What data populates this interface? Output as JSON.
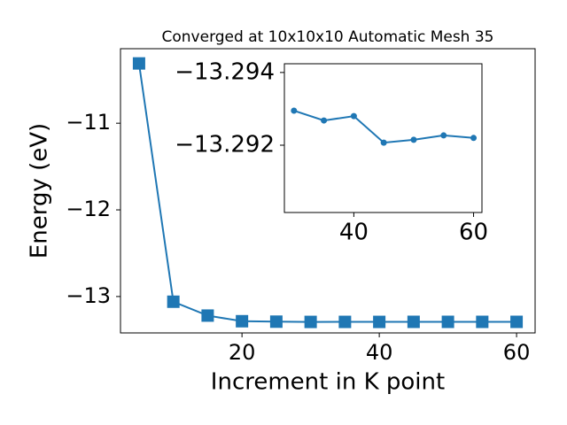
{
  "chart_data": [
    {
      "type": "line",
      "title": "Converged at 10x10x10 Automatic Mesh 35",
      "xlabel": "Increment in K point",
      "ylabel": "Energy (eV)",
      "x": [
        5,
        10,
        15,
        20,
        25,
        30,
        35,
        40,
        45,
        50,
        55,
        60
      ],
      "values": [
        -10.31,
        -13.06,
        -13.22,
        -13.285,
        -13.29,
        -13.29295,
        -13.29268,
        -13.2928,
        -13.29207,
        -13.29215,
        -13.29227,
        -13.2922
      ],
      "color": "#1f77b4",
      "marker": "square",
      "xlim": [
        2.3,
        62.7
      ],
      "xticks": [
        20,
        40,
        60
      ],
      "ylim": [
        -13.42,
        -10.14
      ],
      "yticks": [
        {
          "value": -13,
          "label": "−13"
        },
        {
          "value": -12,
          "label": "−12"
        },
        {
          "value": -11,
          "label": "−11"
        }
      ]
    },
    {
      "type": "line",
      "x": [
        30,
        35,
        40,
        45,
        50,
        55,
        60
      ],
      "values": [
        -13.29295,
        -13.29268,
        -13.2928,
        -13.29207,
        -13.29215,
        -13.29227,
        -13.2922
      ],
      "color": "#1f77b4",
      "marker": "circle",
      "xlim": [
        28.4,
        61.4
      ],
      "xticks": [
        40,
        60
      ],
      "ylim": [
        -13.29015,
        -13.29424
      ],
      "yticks": [
        {
          "value": -13.294,
          "label": "−13.294"
        },
        {
          "value": -13.292,
          "label": "−13.292"
        }
      ]
    }
  ]
}
